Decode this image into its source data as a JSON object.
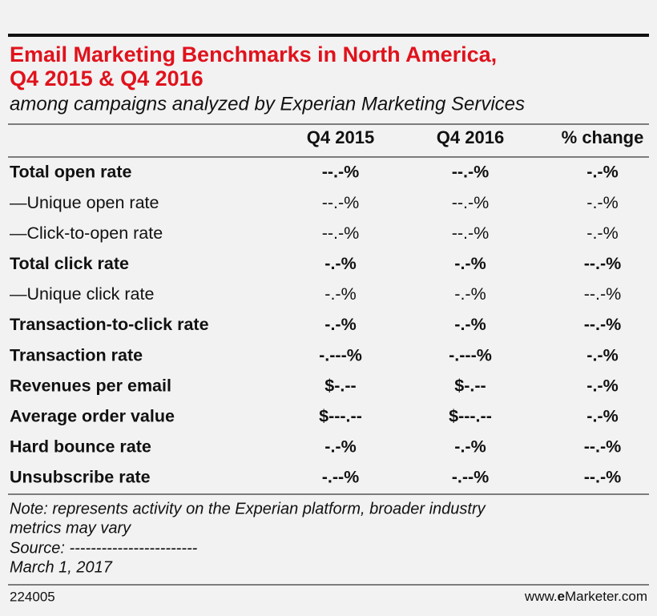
{
  "header": {
    "title_lines": [
      "Email Marketing Benchmarks in North America,",
      "Q4 2015 & Q4 2016"
    ],
    "subtitle": "among campaigns analyzed by Experian Marketing Services"
  },
  "table": {
    "columns": [
      "Q4 2015",
      "Q4 2016",
      "% change"
    ],
    "rows": [
      {
        "label": "Total open rate",
        "bold": true,
        "cells": [
          "--.-%",
          "--.-%",
          "-.-%"
        ]
      },
      {
        "label": "—Unique open rate",
        "bold": false,
        "cells": [
          "--.-%",
          "--.-%",
          "-.-%"
        ]
      },
      {
        "label": "—Click-to-open rate",
        "bold": false,
        "cells": [
          "--.-%",
          "--.-%",
          "-.-%"
        ]
      },
      {
        "label": "Total click rate",
        "bold": true,
        "cells": [
          "-.-%",
          "-.-%",
          "--.-%"
        ]
      },
      {
        "label": "—Unique click rate",
        "bold": false,
        "cells": [
          "-.-%",
          "-.-%",
          "--.-%"
        ]
      },
      {
        "label": "Transaction-to-click rate",
        "bold": true,
        "cells": [
          "-.-%",
          "-.-%",
          "--.-%"
        ]
      },
      {
        "label": "Transaction rate",
        "bold": true,
        "cells": [
          "-.---%",
          "-.---%",
          "-.-%"
        ]
      },
      {
        "label": "Revenues per email",
        "bold": true,
        "cells": [
          "$-.--",
          "$-.--",
          "-.-%"
        ]
      },
      {
        "label": "Average order value",
        "bold": true,
        "cells": [
          "$---.--",
          "$---.--",
          "-.-%"
        ]
      },
      {
        "label": "Hard bounce rate",
        "bold": true,
        "cells": [
          "-.-%",
          "-.-%",
          "--.-%"
        ]
      },
      {
        "label": "Unsubscribe rate",
        "bold": true,
        "cells": [
          "-.--%",
          "-.--%",
          "--.-%"
        ]
      }
    ]
  },
  "notes": [
    "Note: represents activity on the Experian platform, broader industry",
    "metrics may vary",
    "Source: ------------------------",
    "March 1, 2017"
  ],
  "footer": {
    "id": "224005",
    "site_prefix": "www.",
    "site_brand": "e",
    "site_suffix": "Marketer.com"
  }
}
